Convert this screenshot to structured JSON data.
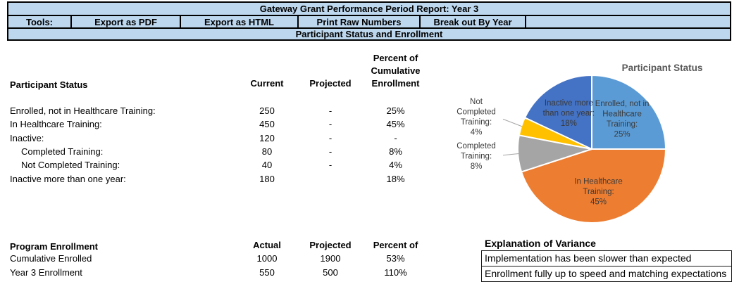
{
  "header": {
    "title": "Gateway Grant Performance Period Report: Year 3",
    "tools_label": "Tools:",
    "tools": [
      "Export as PDF",
      "Export as HTML",
      "Print Raw Numbers",
      "Break out By Year"
    ],
    "section_title": "Participant Status and Enrollment"
  },
  "participant_status_table": {
    "title": "Participant Status",
    "columns": [
      "Current",
      "Projected",
      "Percent of\nCumulative\nEnrollment"
    ],
    "rows": [
      {
        "label": "Enrolled, not in Healthcare Training:",
        "indent": false,
        "current": "250",
        "projected": "-",
        "percent": "25%"
      },
      {
        "label": "In Healthcare Training:",
        "indent": false,
        "current": "450",
        "projected": "-",
        "percent": "45%"
      },
      {
        "label": "Inactive:",
        "indent": false,
        "current": "120",
        "projected": "-",
        "percent": "-"
      },
      {
        "label": "Completed Training:",
        "indent": true,
        "current": "80",
        "projected": "-",
        "percent": "8%"
      },
      {
        "label": "Not Completed Training:",
        "indent": true,
        "current": "40",
        "projected": "-",
        "percent": "4%"
      },
      {
        "label": "Inactive more than one year:",
        "indent": false,
        "current": "180",
        "projected": "",
        "percent": "18%"
      }
    ]
  },
  "program_enrollment_table": {
    "title": "Program Enrollment",
    "columns": [
      "Actual",
      "Projected",
      "Percent of"
    ],
    "rows": [
      {
        "label": "Cumulative Enrolled",
        "actual": "1000",
        "projected": "1900",
        "percent": "53%"
      },
      {
        "label": "Year 3 Enrollment",
        "actual": "550",
        "projected": "500",
        "percent": "110%"
      }
    ]
  },
  "variance": {
    "title": "Explanation of Variance",
    "rows": [
      "Implementation has been slower than expected",
      "Enrollment fully up to speed and matching expectations"
    ]
  },
  "chart_data": {
    "type": "pie",
    "title": "Participant  Status",
    "start_angle_deg": 0,
    "direction": "clockwise",
    "legend_position": "none",
    "slices": [
      {
        "label": "Enrolled, not in Healthcare Training:",
        "value": 25,
        "color": "#5B9BD5",
        "label_placement": "inside"
      },
      {
        "label": "In Healthcare Training:",
        "value": 45,
        "color": "#ED7D31",
        "label_placement": "inside"
      },
      {
        "label": "Completed Training:",
        "value": 8,
        "color": "#A5A5A5",
        "label_placement": "outside"
      },
      {
        "label": "Not Completed Training:",
        "value": 4,
        "color": "#FFC000",
        "label_placement": "outside"
      },
      {
        "label": "Inactive more than one year:",
        "value": 18,
        "color": "#4472C4",
        "label_placement": "inside"
      }
    ]
  },
  "colors": {
    "header_fill": "#BDD7EE",
    "header_border": "#000000",
    "chart_title_text": "#595959",
    "chart_label_text": "#3a3a3a",
    "leader_line": "#A6A6A6"
  }
}
